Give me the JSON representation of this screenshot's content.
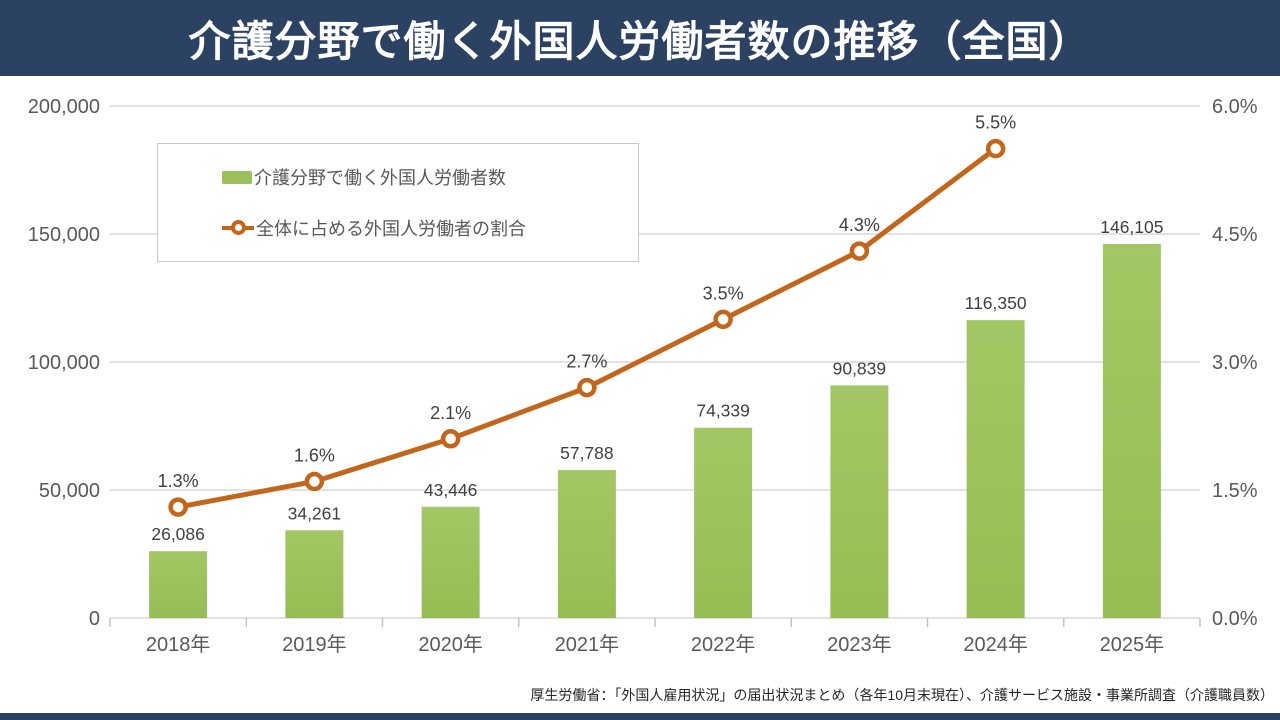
{
  "header": {
    "title": "介護分野で働く外国人労働者数の推移（全国）",
    "bg_color": "#2B4263",
    "text_color": "#FFFFFF"
  },
  "legend": {
    "items": [
      {
        "label": "介護分野で働く外国人労働者数",
        "marker": "bar-swatch",
        "color": "#9CC15C"
      },
      {
        "label": "全体に占める外国人労働者の割合",
        "marker": "line-with-circle",
        "color": "#C2661C"
      }
    ]
  },
  "footer": {
    "source": "厚生労働省：「外国人雇用状況」の届出状況まとめ（各年10月末現在）、介護サービス施設・事業所調査（介護職員数）"
  },
  "chart_data": {
    "type": "bar",
    "subtype": "combo-bar-line",
    "title": "介護分野で働く外国人労働者数の推移（全国）",
    "categories": [
      "2018年",
      "2019年",
      "2020年",
      "2021年",
      "2022年",
      "2023年",
      "2024年",
      "2025年"
    ],
    "series": [
      {
        "name": "介護分野で働く外国人労働者数",
        "type": "bar",
        "axis": "left",
        "color": "#9CC15C",
        "values": [
          26086,
          34261,
          43446,
          57788,
          74339,
          90839,
          116350,
          146105
        ],
        "labels": [
          "26,086",
          "34,261",
          "43,446",
          "57,788",
          "74,339",
          "90,839",
          "116,350",
          "146,105"
        ]
      },
      {
        "name": "全体に占める外国人労働者の割合",
        "type": "line",
        "axis": "right",
        "color": "#C2661C",
        "values": [
          1.3,
          1.6,
          2.1,
          2.7,
          3.5,
          4.3,
          5.5,
          null
        ],
        "labels": [
          "1.3%",
          "1.6%",
          "2.1%",
          "2.7%",
          "3.5%",
          "4.3%",
          "5.5%",
          null
        ]
      }
    ],
    "left_axis": {
      "min": 0,
      "max": 200000,
      "tick_values": [
        0,
        50000,
        100000,
        150000,
        200000
      ],
      "tick_labels": [
        "0",
        "50,000",
        "100,000",
        "150,000",
        "200,000"
      ]
    },
    "right_axis": {
      "min": 0,
      "max": 6,
      "tick_values": [
        0,
        1.5,
        3,
        4.5,
        6
      ],
      "tick_labels": [
        "0.0%",
        "1.5%",
        "3.0%",
        "4.5%",
        "6.0%"
      ]
    },
    "grid": true,
    "grid_color": "#D9D9D9",
    "axis_text_color": "#595959",
    "data_label_color": "#404040",
    "legend_position": "top-left-inside"
  }
}
